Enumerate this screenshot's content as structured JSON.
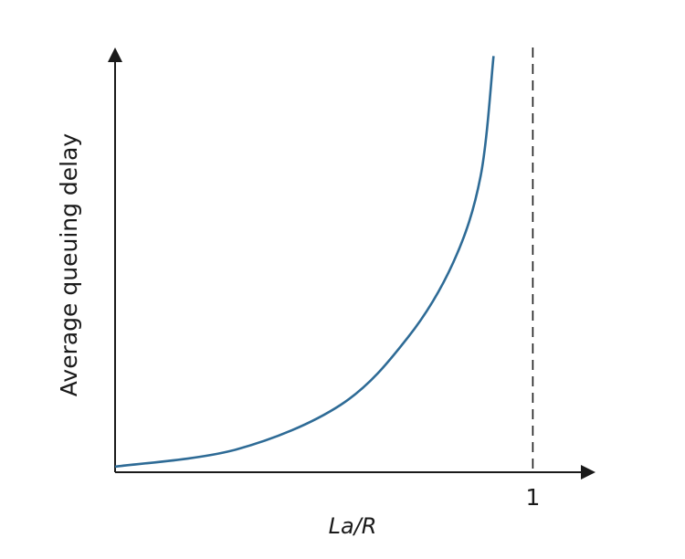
{
  "chart_data": {
    "type": "line",
    "title": "",
    "xlabel": "La/R",
    "ylabel": "Average queuing delay",
    "x_ticks": [
      {
        "value": 1,
        "label": "1"
      }
    ],
    "y_ticks": [],
    "xlim": [
      0,
      1.15
    ],
    "ylim": [
      0,
      9.9
    ],
    "grid": false,
    "asymptote": {
      "x": 1,
      "style": "dashed",
      "color": "#1a1a1a"
    },
    "series": [
      {
        "color": "#2e6b96",
        "x": [
          0,
          0.29,
          0.54,
          0.7,
          0.81,
          0.875,
          0.906
        ],
        "y": [
          0.13,
          0.53,
          1.57,
          3.13,
          4.9,
          6.9,
          9.7
        ]
      }
    ],
    "axis_color": "#1a1a1a"
  }
}
